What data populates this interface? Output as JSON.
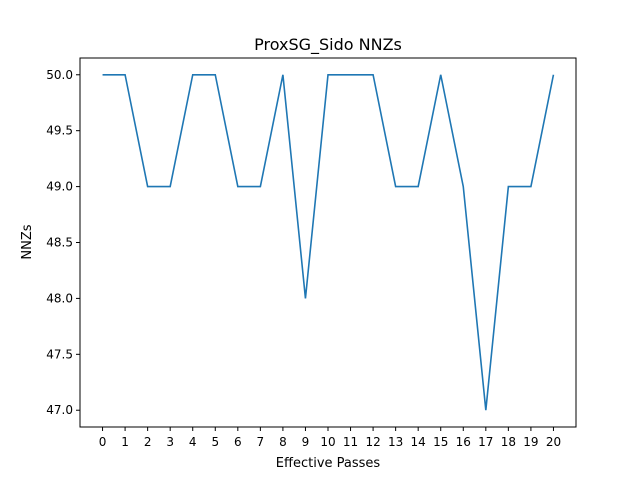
{
  "chart_data": {
    "type": "line",
    "title": "ProxSG_Sido NNZs",
    "xlabel": "Effective Passes",
    "ylabel": "NNZs",
    "x": [
      0,
      1,
      2,
      3,
      4,
      5,
      6,
      7,
      8,
      9,
      10,
      11,
      12,
      13,
      14,
      15,
      16,
      17,
      18,
      19,
      20
    ],
    "series": [
      {
        "values": [
          50,
          50,
          49,
          49,
          50,
          50,
          49,
          49,
          50,
          48,
          50,
          50,
          50,
          49,
          49,
          50,
          49,
          47,
          49,
          49,
          50
        ],
        "color": "#1f77b4"
      }
    ],
    "xticks": [
      "0",
      "1",
      "2",
      "3",
      "4",
      "5",
      "6",
      "7",
      "8",
      "9",
      "10",
      "11",
      "12",
      "13",
      "14",
      "15",
      "16",
      "17",
      "18",
      "19",
      "20"
    ],
    "yticks": [
      "47.0",
      "47.5",
      "48.0",
      "48.5",
      "49.0",
      "49.5",
      "50.0"
    ],
    "xlim": [
      -1,
      21
    ],
    "ylim": [
      46.85,
      50.15
    ],
    "grid": false
  }
}
